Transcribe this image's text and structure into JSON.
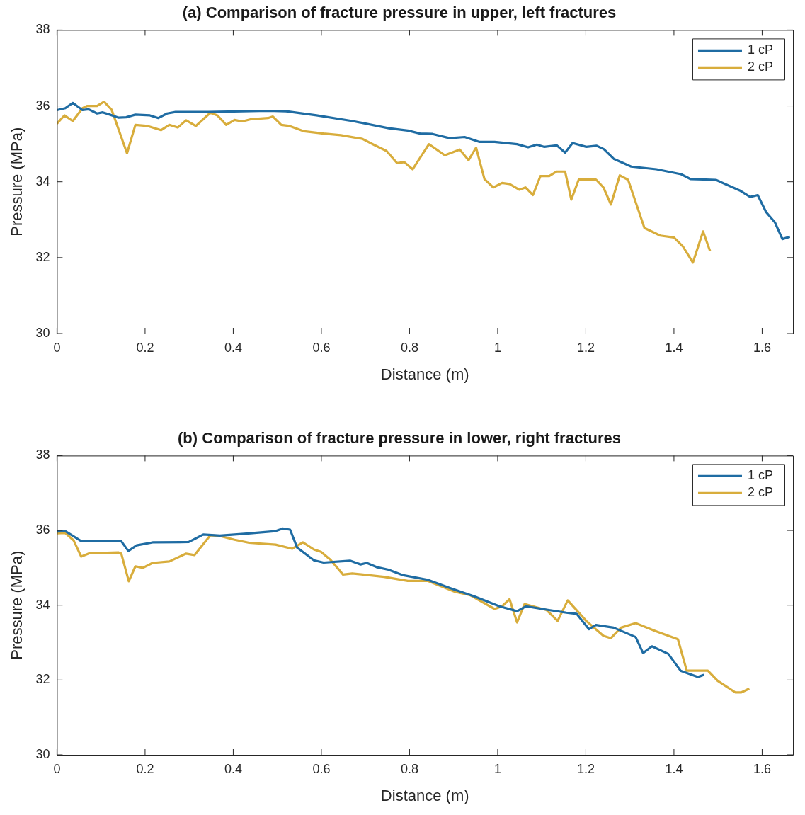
{
  "chart_data": [
    {
      "type": "line",
      "title": "(a) Comparison of fracture pressure in upper, left fractures",
      "xlabel": "Distance (m)",
      "ylabel": "Pressure (MPa)",
      "xlim": [
        0,
        1.67
      ],
      "xticks": [
        0,
        0.2,
        0.4,
        0.6,
        0.8,
        1,
        1.2,
        1.4,
        1.6
      ],
      "ylim": [
        30,
        38
      ],
      "yticks": [
        30,
        32,
        34,
        36,
        38
      ],
      "grid": false,
      "legend": "top right",
      "series": [
        {
          "name": "1 cP",
          "color": "#1f6ca3",
          "x": [
            0,
            0.019,
            0.036,
            0.058,
            0.072,
            0.091,
            0.104,
            0.12,
            0.14,
            0.157,
            0.178,
            0.211,
            0.23,
            0.25,
            0.269,
            0.343,
            0.479,
            0.52,
            0.589,
            0.671,
            0.753,
            0.796,
            0.824,
            0.852,
            0.891,
            0.925,
            0.959,
            0.993,
            1.044,
            1.069,
            1.089,
            1.106,
            1.134,
            1.153,
            1.17,
            1.201,
            1.224,
            1.241,
            1.264,
            1.303,
            1.36,
            1.416,
            1.438,
            1.495,
            1.551,
            1.573,
            1.59,
            1.609,
            1.629,
            1.646,
            1.663
          ],
          "values": [
            35.89,
            35.94,
            36.08,
            35.89,
            35.91,
            35.8,
            35.83,
            35.77,
            35.69,
            35.7,
            35.77,
            35.75,
            35.68,
            35.8,
            35.84,
            35.84,
            35.87,
            35.86,
            35.75,
            35.6,
            35.41,
            35.35,
            35.27,
            35.26,
            35.15,
            35.18,
            35.05,
            35.05,
            34.99,
            34.91,
            34.98,
            34.92,
            34.96,
            34.77,
            35.02,
            34.92,
            34.95,
            34.86,
            34.6,
            34.4,
            34.33,
            34.2,
            34.07,
            34.05,
            33.76,
            33.6,
            33.65,
            33.2,
            32.93,
            32.49,
            32.55
          ]
        },
        {
          "name": "2 cP",
          "color": "#d8ad3c",
          "x": [
            0,
            0.017,
            0.036,
            0.058,
            0.069,
            0.091,
            0.107,
            0.124,
            0.159,
            0.178,
            0.206,
            0.236,
            0.255,
            0.274,
            0.293,
            0.315,
            0.348,
            0.364,
            0.384,
            0.403,
            0.42,
            0.441,
            0.479,
            0.49,
            0.509,
            0.528,
            0.561,
            0.605,
            0.644,
            0.693,
            0.72,
            0.748,
            0.772,
            0.788,
            0.807,
            0.844,
            0.88,
            0.914,
            0.934,
            0.951,
            0.97,
            0.99,
            1.01,
            1.027,
            1.049,
            1.063,
            1.08,
            1.097,
            1.117,
            1.134,
            1.153,
            1.167,
            1.184,
            1.223,
            1.24,
            1.257,
            1.277,
            1.296,
            1.333,
            1.369,
            1.4,
            1.42,
            1.443,
            1.466,
            1.482
          ],
          "values": [
            35.53,
            35.75,
            35.6,
            35.94,
            36,
            36,
            36.11,
            35.9,
            34.75,
            35.5,
            35.47,
            35.36,
            35.5,
            35.43,
            35.62,
            35.47,
            35.82,
            35.75,
            35.5,
            35.63,
            35.59,
            35.65,
            35.68,
            35.72,
            35.5,
            35.47,
            35.33,
            35.27,
            35.23,
            35.13,
            34.97,
            34.81,
            34.49,
            34.52,
            34.33,
            34.99,
            34.7,
            34.85,
            34.57,
            34.9,
            34.07,
            33.85,
            33.97,
            33.94,
            33.79,
            33.85,
            33.65,
            34.15,
            34.15,
            34.27,
            34.27,
            33.53,
            34.06,
            34.06,
            33.85,
            33.4,
            34.17,
            34.05,
            32.78,
            32.58,
            32.53,
            32.3,
            31.87,
            32.69,
            32.17
          ]
        }
      ]
    },
    {
      "type": "line",
      "title": "(b) Comparison of fracture pressure in lower, right fractures",
      "xlabel": "Distance (m)",
      "ylabel": "Pressure (MPa)",
      "xlim": [
        0,
        1.67
      ],
      "xticks": [
        0,
        0.2,
        0.4,
        0.6,
        0.8,
        1,
        1.2,
        1.4,
        1.6
      ],
      "ylim": [
        30,
        38
      ],
      "yticks": [
        30,
        32,
        34,
        36,
        38
      ],
      "grid": false,
      "legend": "top right",
      "series": [
        {
          "name": "1 cP",
          "color": "#1f6ca3",
          "x": [
            0,
            0.019,
            0.053,
            0.097,
            0.146,
            0.162,
            0.181,
            0.217,
            0.299,
            0.332,
            0.37,
            0.425,
            0.496,
            0.512,
            0.529,
            0.545,
            0.583,
            0.605,
            0.665,
            0.689,
            0.703,
            0.725,
            0.752,
            0.786,
            0.841,
            0.892,
            0.948,
            1.004,
            1.044,
            1.064,
            1.111,
            1.156,
            1.179,
            1.207,
            1.223,
            1.263,
            1.313,
            1.33,
            1.35,
            1.387,
            1.415,
            1.454,
            1.468
          ],
          "values": [
            35.97,
            35.98,
            35.73,
            35.71,
            35.71,
            35.45,
            35.6,
            35.68,
            35.69,
            35.89,
            35.86,
            35.91,
            35.98,
            36.05,
            36.02,
            35.54,
            35.2,
            35.14,
            35.19,
            35.09,
            35.13,
            35.02,
            34.95,
            34.8,
            34.68,
            34.46,
            34.23,
            33.97,
            33.84,
            33.97,
            33.88,
            33.8,
            33.77,
            33.36,
            33.47,
            33.4,
            33.15,
            32.72,
            32.9,
            32.7,
            32.25,
            32.08,
            32.14
          ]
        },
        {
          "name": "2 cP",
          "color": "#d8ad3c",
          "x": [
            0,
            0.019,
            0.038,
            0.055,
            0.074,
            0.14,
            0.146,
            0.163,
            0.178,
            0.195,
            0.217,
            0.255,
            0.293,
            0.312,
            0.348,
            0.37,
            0.403,
            0.436,
            0.496,
            0.534,
            0.558,
            0.583,
            0.599,
            0.621,
            0.649,
            0.67,
            0.709,
            0.742,
            0.796,
            0.841,
            0.903,
            0.937,
            0.993,
            1.01,
            1.027,
            1.044,
            1.061,
            1.111,
            1.136,
            1.159,
            1.201,
            1.24,
            1.257,
            1.28,
            1.313,
            1.358,
            1.409,
            1.429,
            1.477,
            1.499,
            1.539,
            1.553,
            1.571
          ],
          "values": [
            35.92,
            35.93,
            35.73,
            35.3,
            35.39,
            35.41,
            35.38,
            34.64,
            35.04,
            35,
            35.13,
            35.17,
            35.38,
            35.34,
            35.87,
            35.85,
            35.75,
            35.67,
            35.62,
            35.51,
            35.68,
            35.49,
            35.43,
            35.21,
            34.82,
            34.85,
            34.8,
            34.76,
            34.65,
            34.65,
            34.36,
            34.27,
            33.9,
            33.97,
            34.16,
            33.54,
            34.03,
            33.87,
            33.58,
            34.13,
            33.58,
            33.18,
            33.12,
            33.4,
            33.52,
            33.31,
            33.09,
            32.25,
            32.25,
            31.98,
            31.67,
            31.67,
            31.77
          ]
        }
      ]
    }
  ]
}
